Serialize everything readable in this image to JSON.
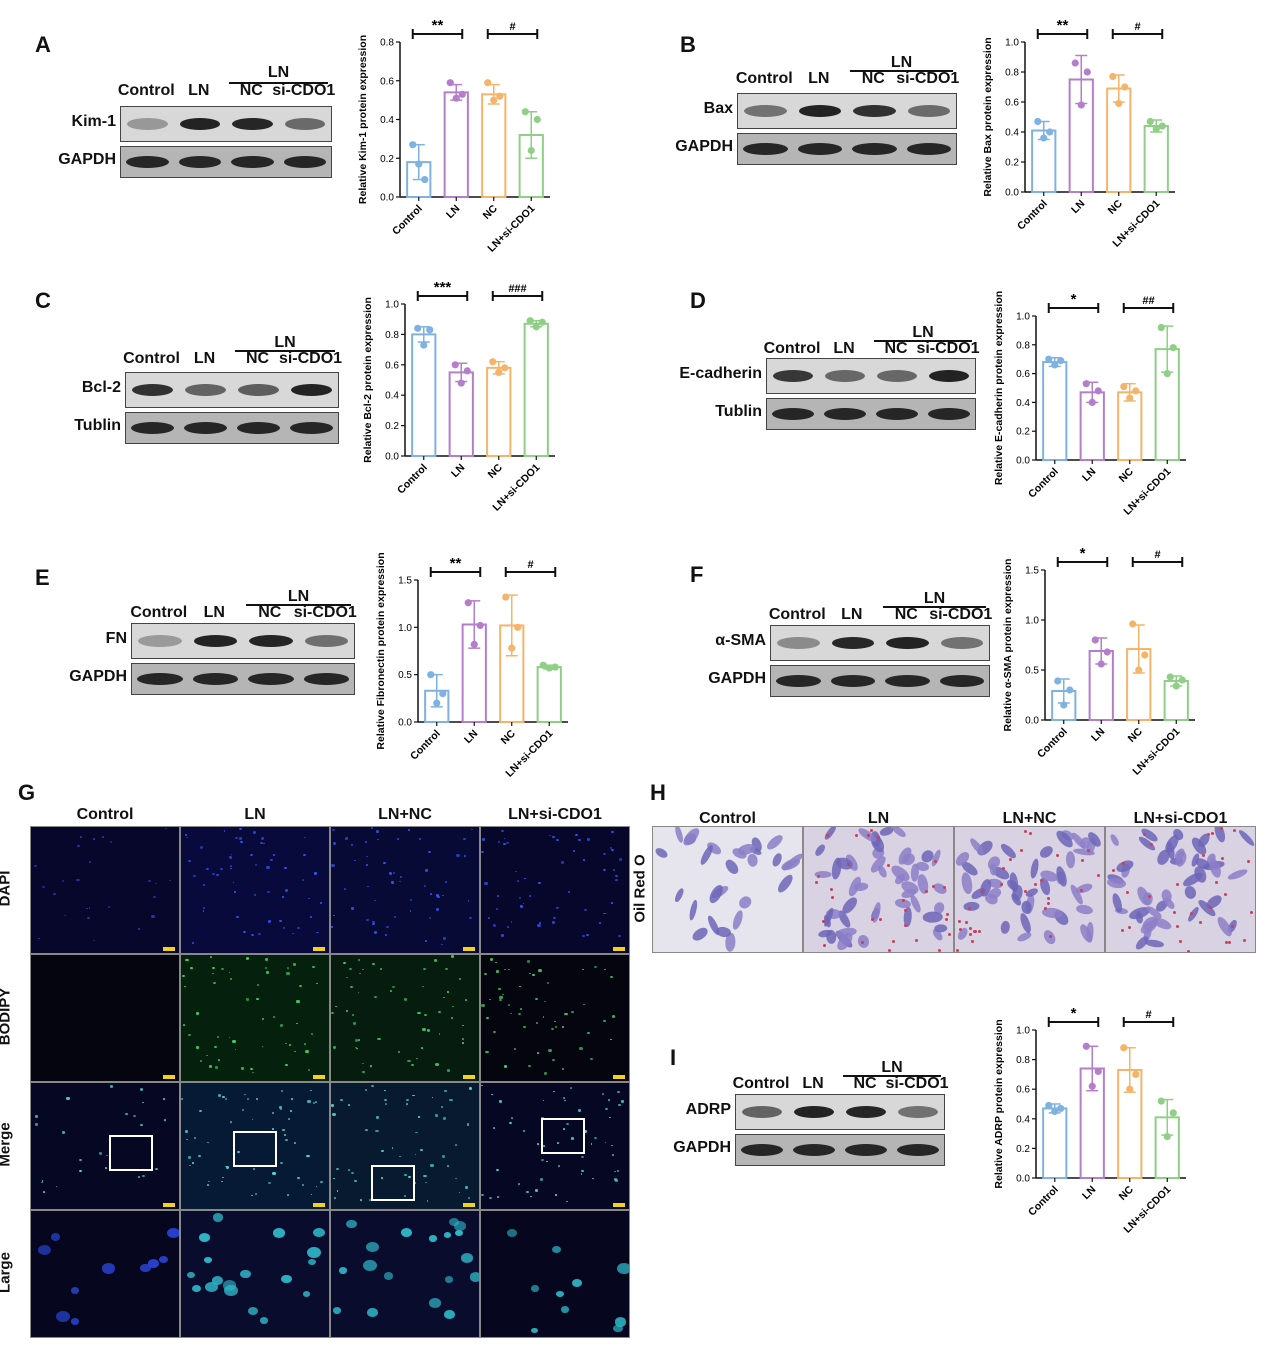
{
  "letters": {
    "A": "A",
    "B": "B",
    "C": "C",
    "D": "D",
    "E": "E",
    "F": "F",
    "G": "G",
    "H": "H",
    "I": "I"
  },
  "blot_lanes": {
    "control": "Control",
    "ln": "LN",
    "group": "LN",
    "nc": "NC",
    "si": "si-CDO1"
  },
  "blots": {
    "A": {
      "target": "Kim-1",
      "loading": "GAPDH"
    },
    "B": {
      "target": "Bax",
      "loading": "GAPDH"
    },
    "C": {
      "target": "Bcl-2",
      "loading": "Tublin"
    },
    "D": {
      "target": "E-cadherin",
      "loading": "Tublin"
    },
    "E": {
      "target": "FN",
      "loading": "GAPDH"
    },
    "F": {
      "target": "α-SMA",
      "loading": "GAPDH"
    },
    "I": {
      "target": "ADRP",
      "loading": "GAPDH"
    }
  },
  "chart_data": [
    {
      "id": "A",
      "type": "bar",
      "categories": [
        "Control",
        "LN",
        "NC",
        "LN+si-CDO1"
      ],
      "values": [
        0.18,
        0.54,
        0.53,
        0.32
      ],
      "errors": [
        0.09,
        0.04,
        0.05,
        0.12
      ],
      "points": [
        [
          0.27,
          0.17,
          0.09
        ],
        [
          0.59,
          0.51,
          0.53
        ],
        [
          0.59,
          0.5,
          0.52
        ],
        [
          0.44,
          0.24,
          0.4
        ]
      ],
      "ylabel": "Relative Kim-1 protein expression",
      "ylim": [
        0,
        0.8
      ],
      "ticks": [
        0,
        0.2,
        0.4,
        0.6,
        0.8
      ],
      "tick_labels": [
        "0.0",
        "0.2",
        "0.4",
        "0.6",
        "0.8"
      ],
      "sig": [
        {
          "from": 0,
          "to": 1,
          "label": "**"
        },
        {
          "from": 2,
          "to": 3,
          "label": "#"
        }
      ]
    },
    {
      "id": "B",
      "type": "bar",
      "categories": [
        "Control",
        "LN",
        "NC",
        "LN+si-CDO1"
      ],
      "values": [
        0.41,
        0.75,
        0.69,
        0.44
      ],
      "errors": [
        0.06,
        0.16,
        0.09,
        0.04
      ],
      "points": [
        [
          0.47,
          0.36,
          0.4
        ],
        [
          0.86,
          0.58,
          0.8
        ],
        [
          0.77,
          0.59,
          0.7
        ],
        [
          0.47,
          0.42,
          0.44
        ]
      ],
      "ylabel": "Relative Bax protein expression",
      "ylim": [
        0,
        1.0
      ],
      "ticks": [
        0,
        0.2,
        0.4,
        0.6,
        0.8,
        1.0
      ],
      "tick_labels": [
        "0.0",
        "0.2",
        "0.4",
        "0.6",
        "0.8",
        "1.0"
      ],
      "sig": [
        {
          "from": 0,
          "to": 1,
          "label": "**"
        },
        {
          "from": 2,
          "to": 3,
          "label": "#"
        }
      ]
    },
    {
      "id": "C",
      "type": "bar",
      "categories": [
        "Control",
        "LN",
        "NC",
        "LN+si-CDO1"
      ],
      "values": [
        0.8,
        0.55,
        0.58,
        0.87
      ],
      "errors": [
        0.05,
        0.06,
        0.04,
        0.02
      ],
      "points": [
        [
          0.84,
          0.73,
          0.83
        ],
        [
          0.6,
          0.48,
          0.56
        ],
        [
          0.62,
          0.55,
          0.58
        ],
        [
          0.89,
          0.85,
          0.88
        ]
      ],
      "ylabel": "Relative Bcl-2 protein expression",
      "ylim": [
        0,
        1.0
      ],
      "ticks": [
        0,
        0.2,
        0.4,
        0.6,
        0.8,
        1.0
      ],
      "tick_labels": [
        "0.0",
        "0.2",
        "0.4",
        "0.6",
        "0.8",
        "1.0"
      ],
      "sig": [
        {
          "from": 0,
          "to": 1,
          "label": "***"
        },
        {
          "from": 2,
          "to": 3,
          "label": "###"
        }
      ]
    },
    {
      "id": "D",
      "type": "bar",
      "categories": [
        "Control",
        "LN",
        "NC",
        "LN+si-CDO1"
      ],
      "values": [
        0.68,
        0.47,
        0.47,
        0.77
      ],
      "errors": [
        0.03,
        0.07,
        0.06,
        0.16
      ],
      "points": [
        [
          0.7,
          0.66,
          0.69
        ],
        [
          0.53,
          0.4,
          0.48
        ],
        [
          0.51,
          0.43,
          0.48
        ],
        [
          0.92,
          0.6,
          0.78
        ]
      ],
      "ylabel": "Relative E-cadherin protein expression",
      "ylim": [
        0,
        1.0
      ],
      "ticks": [
        0,
        0.2,
        0.4,
        0.6,
        0.8,
        1.0
      ],
      "tick_labels": [
        "0.0",
        "0.2",
        "0.4",
        "0.6",
        "0.8",
        "1.0"
      ],
      "sig": [
        {
          "from": 0,
          "to": 1,
          "label": "*"
        },
        {
          "from": 2,
          "to": 3,
          "label": "##"
        }
      ]
    },
    {
      "id": "E",
      "type": "bar",
      "categories": [
        "Control",
        "LN",
        "NC",
        "LN+si-CDO1"
      ],
      "values": [
        0.33,
        1.03,
        1.02,
        0.58
      ],
      "errors": [
        0.17,
        0.25,
        0.32,
        0.02
      ],
      "points": [
        [
          0.5,
          0.2,
          0.3
        ],
        [
          1.26,
          0.82,
          1.02
        ],
        [
          1.32,
          0.78,
          1.0
        ],
        [
          0.6,
          0.57,
          0.58
        ]
      ],
      "ylabel": "Relative Fibronectin protein expression",
      "ylim": [
        0,
        1.5
      ],
      "ticks": [
        0,
        0.5,
        1.0,
        1.5
      ],
      "tick_labels": [
        "0.0",
        "0.5",
        "1.0",
        "1.5"
      ],
      "sig": [
        {
          "from": 0,
          "to": 1,
          "label": "**"
        },
        {
          "from": 2,
          "to": 3,
          "label": "#"
        }
      ]
    },
    {
      "id": "F",
      "type": "bar",
      "categories": [
        "Control",
        "LN",
        "NC",
        "LN+si-CDO1"
      ],
      "values": [
        0.29,
        0.69,
        0.71,
        0.39
      ],
      "errors": [
        0.12,
        0.13,
        0.24,
        0.05
      ],
      "points": [
        [
          0.39,
          0.15,
          0.3
        ],
        [
          0.8,
          0.56,
          0.68
        ],
        [
          0.96,
          0.5,
          0.65
        ],
        [
          0.43,
          0.34,
          0.4
        ]
      ],
      "ylabel": "Relative α-SMA protein expression",
      "ylim": [
        0,
        1.5
      ],
      "ticks": [
        0,
        0.5,
        1.0,
        1.5
      ],
      "tick_labels": [
        "0.0",
        "0.5",
        "1.0",
        "1.5"
      ],
      "sig": [
        {
          "from": 0,
          "to": 1,
          "label": "*"
        },
        {
          "from": 2,
          "to": 3,
          "label": "#"
        }
      ]
    },
    {
      "id": "I",
      "type": "bar",
      "categories": [
        "Control",
        "LN",
        "NC",
        "LN+si-CDO1"
      ],
      "values": [
        0.47,
        0.74,
        0.73,
        0.41
      ],
      "errors": [
        0.03,
        0.15,
        0.15,
        0.12
      ],
      "points": [
        [
          0.49,
          0.45,
          0.47
        ],
        [
          0.89,
          0.62,
          0.72
        ],
        [
          0.88,
          0.6,
          0.7
        ],
        [
          0.52,
          0.28,
          0.44
        ]
      ],
      "ylabel": "Relative ADRP protein expression",
      "ylim": [
        0,
        1.0
      ],
      "ticks": [
        0,
        0.2,
        0.4,
        0.6,
        0.8,
        1.0
      ],
      "tick_labels": [
        "0.0",
        "0.2",
        "0.4",
        "0.6",
        "0.8",
        "1.0"
      ],
      "sig": [
        {
          "from": 0,
          "to": 1,
          "label": "*"
        },
        {
          "from": 2,
          "to": 3,
          "label": "#"
        }
      ]
    }
  ],
  "colors": {
    "control": "#7fb2e0",
    "ln": "#b47ecb",
    "nc": "#f5b46a",
    "si": "#8fcf86"
  },
  "panel_g": {
    "columns": [
      "Control",
      "LN",
      "LN+NC",
      "LN+si-CDO1"
    ],
    "rows": [
      "DAPI",
      "BODIPY",
      "Merge",
      "Large"
    ]
  },
  "panel_h": {
    "columns": [
      "Control",
      "LN",
      "LN+NC",
      "LN+si-CDO1"
    ],
    "row": "Oil Red O"
  }
}
